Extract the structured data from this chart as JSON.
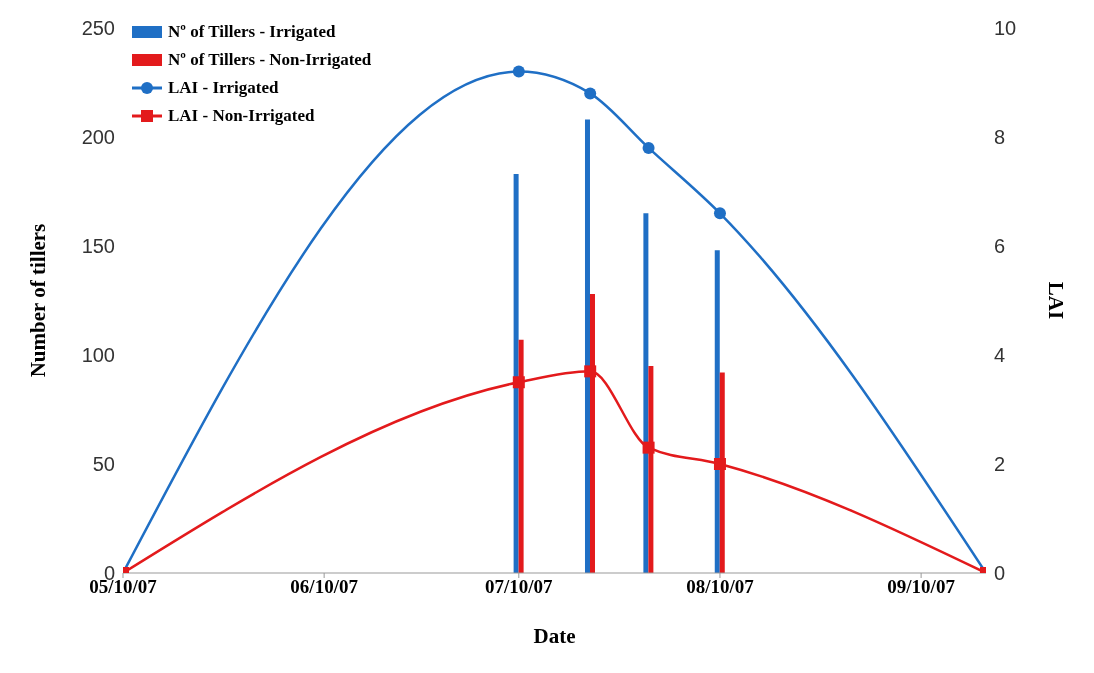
{
  "chart_data": {
    "type": "bar",
    "xlabel": "Date",
    "ylabel": "Number of tillers",
    "y2label": "LAI",
    "x": [
      "2007-05-10",
      "2007-07-10",
      "2007-07-21",
      "2007-07-30",
      "2007-08-10",
      "2007-09-20"
    ],
    "series": [
      {
        "name": "Nº of Tillers - Irrigated",
        "color": "#1f6fc5",
        "values": [
          null,
          183,
          208,
          165,
          148,
          null
        ]
      },
      {
        "name": "Nº of Tillers - Non-Irrigated",
        "color": "#e31a1c",
        "values": [
          null,
          107,
          128,
          95,
          92,
          null
        ]
      },
      {
        "name": "LAI - Irrigated",
        "type": "line",
        "axis": "y2",
        "marker": "circle",
        "color": "#1f6fc5",
        "values": [
          0,
          9.2,
          8.8,
          7.8,
          6.6,
          0
        ]
      },
      {
        "name": "LAI - Non-Irrigated",
        "type": "line",
        "axis": "y2",
        "marker": "square",
        "color": "#e31a1c",
        "values": [
          0,
          3.5,
          3.7,
          2.3,
          2.0,
          0
        ]
      }
    ],
    "xlim": [
      "2007-05-10",
      "2007-09-20"
    ],
    "xticks": [
      {
        "value": "2007-05-10",
        "label": "05/10/07"
      },
      {
        "value": "2007-06-10",
        "label": "06/10/07"
      },
      {
        "value": "2007-07-10",
        "label": "07/10/07"
      },
      {
        "value": "2007-08-10",
        "label": "08/10/07"
      },
      {
        "value": "2007-09-10",
        "label": "09/10/07"
      }
    ],
    "ylim": [
      0,
      250
    ],
    "yticks": [
      0,
      50,
      100,
      150,
      200,
      250
    ],
    "y2lim": [
      0,
      10
    ],
    "y2ticks": [
      0,
      2,
      4,
      6,
      8,
      10
    ],
    "legend": "top left",
    "grid": false
  }
}
